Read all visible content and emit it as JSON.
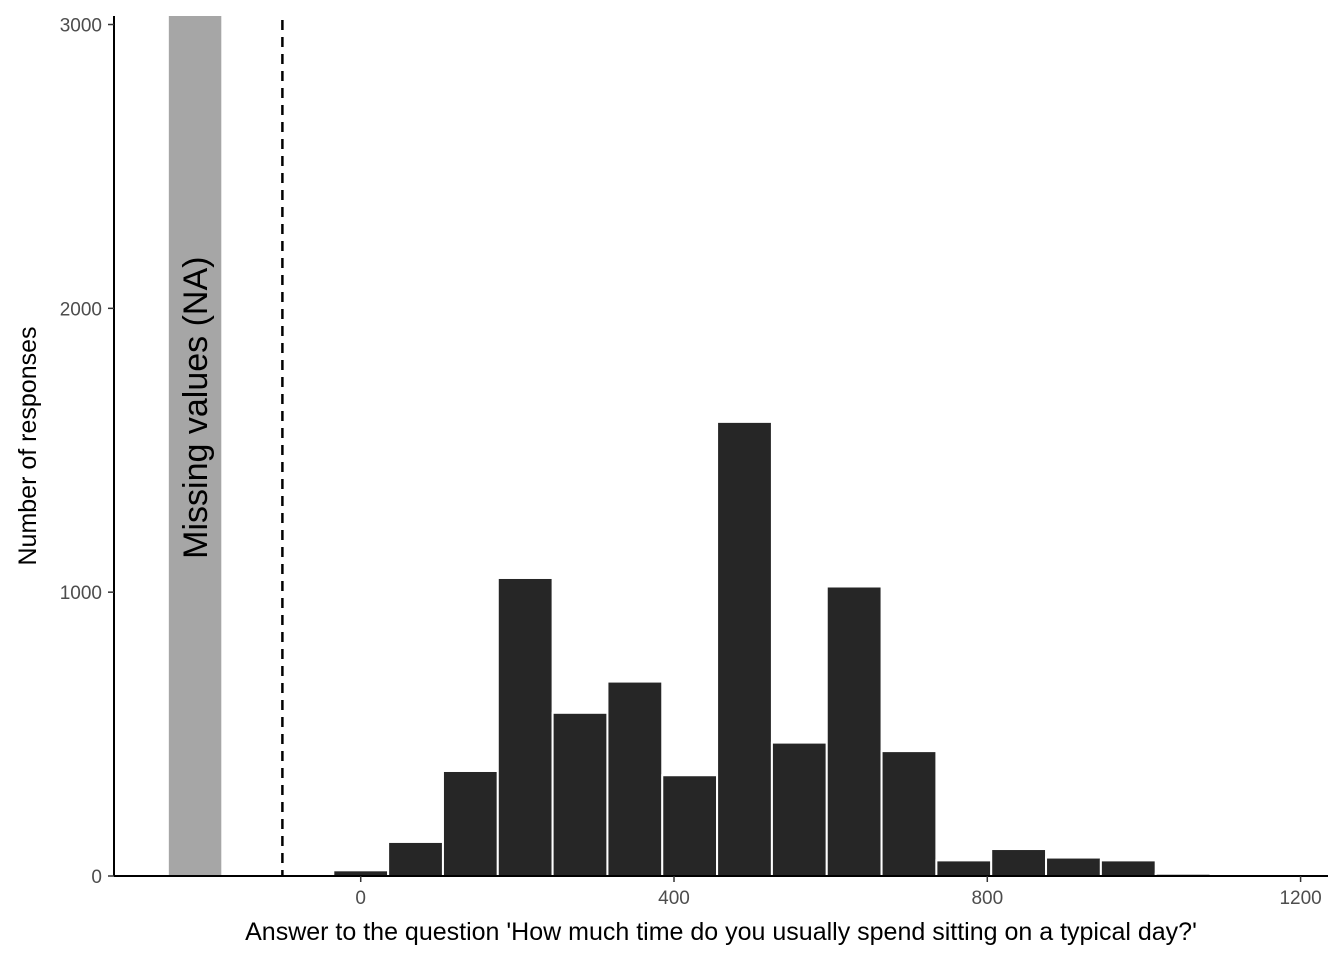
{
  "chart_data": {
    "type": "bar",
    "xlabel": "Answer to the question 'How much time do you usually spend sitting on a typical day?'",
    "ylabel": "Number of responses",
    "xlim": [
      -315,
      1235
    ],
    "ylim": [
      0,
      3030
    ],
    "x_ticks": [
      0,
      400,
      800,
      1200
    ],
    "y_ticks": [
      0,
      1000,
      2000,
      3000
    ],
    "grid": false,
    "bar_color": "#262626",
    "bar_outline": "#ffffff",
    "bins": [
      {
        "x0": -35,
        "x1": 35,
        "count": 20
      },
      {
        "x0": 35,
        "x1": 105,
        "count": 120
      },
      {
        "x0": 105,
        "x1": 175,
        "count": 370
      },
      {
        "x0": 175,
        "x1": 245,
        "count": 1050
      },
      {
        "x0": 245,
        "x1": 315,
        "count": 575
      },
      {
        "x0": 315,
        "x1": 385,
        "count": 685
      },
      {
        "x0": 385,
        "x1": 455,
        "count": 355
      },
      {
        "x0": 455,
        "x1": 525,
        "count": 1600
      },
      {
        "x0": 525,
        "x1": 595,
        "count": 470
      },
      {
        "x0": 595,
        "x1": 665,
        "count": 1020
      },
      {
        "x0": 665,
        "x1": 735,
        "count": 440
      },
      {
        "x0": 735,
        "x1": 805,
        "count": 55
      },
      {
        "x0": 805,
        "x1": 875,
        "count": 95
      },
      {
        "x0": 875,
        "x1": 945,
        "count": 65
      },
      {
        "x0": 945,
        "x1": 1015,
        "count": 55
      },
      {
        "x0": 1015,
        "x1": 1085,
        "count": 8
      }
    ],
    "missing": {
      "label": "Missing values (NA)",
      "x0": -245,
      "x1": -178,
      "count": 3030,
      "color": "#a6a6a6"
    },
    "separator_x": -100
  }
}
